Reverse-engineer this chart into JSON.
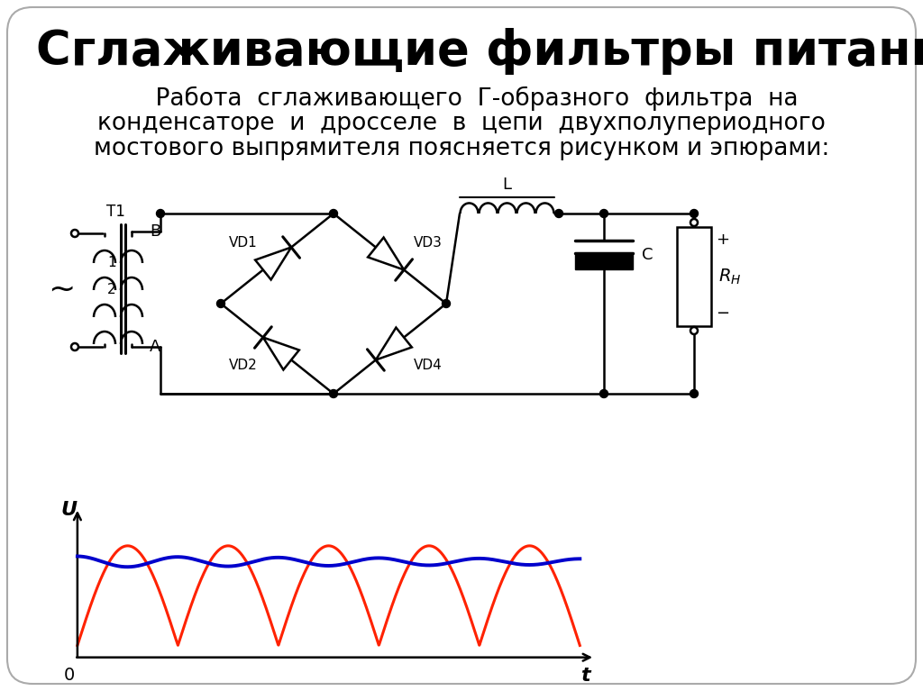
{
  "title": "Сглаживающие фильтры питания",
  "body_line1": "    Работа  сглаживающего  Г-образного  фильтра  на",
  "body_line2": "конденсаторе  и  дросселе  в  цепи  двухполупериодного",
  "body_line3": "мостового выпрямителя поясняется рисунком и эпюрами:",
  "bg_color": "#ffffff",
  "title_color": "#000000",
  "body_color": "#000000",
  "red_color": "#ff2200",
  "blue_color": "#0000cc",
  "black_color": "#000000",
  "title_fontsize": 38,
  "body_fontsize": 19,
  "circuit_lw": 1.8
}
